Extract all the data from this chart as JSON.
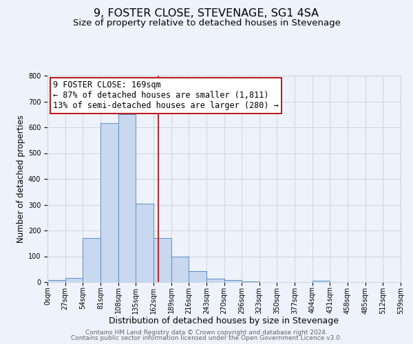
{
  "title": "9, FOSTER CLOSE, STEVENAGE, SG1 4SA",
  "subtitle": "Size of property relative to detached houses in Stevenage",
  "xlabel": "Distribution of detached houses by size in Stevenage",
  "ylabel": "Number of detached properties",
  "bin_edges": [
    0,
    27,
    54,
    81,
    108,
    135,
    162,
    189,
    216,
    243,
    270,
    297,
    324,
    351,
    378,
    405,
    432,
    459,
    486,
    513,
    540
  ],
  "bin_labels": [
    "0sqm",
    "27sqm",
    "54sqm",
    "81sqm",
    "108sqm",
    "135sqm",
    "162sqm",
    "189sqm",
    "216sqm",
    "243sqm",
    "270sqm",
    "296sqm",
    "323sqm",
    "350sqm",
    "377sqm",
    "404sqm",
    "431sqm",
    "458sqm",
    "485sqm",
    "512sqm",
    "539sqm"
  ],
  "counts": [
    8,
    15,
    170,
    615,
    650,
    305,
    170,
    98,
    43,
    13,
    8,
    3,
    0,
    0,
    0,
    5,
    0,
    0,
    0,
    0
  ],
  "bar_facecolor": "#c8d8ef",
  "bar_edgecolor": "#5a8ec8",
  "grid_color": "#ccd4e4",
  "background_color": "#eef2fa",
  "property_line_x": 169,
  "property_line_color": "#bb0000",
  "annotation_box_text": "9 FOSTER CLOSE: 169sqm\n← 87% of detached houses are smaller (1,811)\n13% of semi-detached houses are larger (280) →",
  "annotation_box_facecolor": "#ffffff",
  "annotation_box_edgecolor": "#bb0000",
  "ylim": [
    0,
    800
  ],
  "yticks": [
    0,
    100,
    200,
    300,
    400,
    500,
    600,
    700,
    800
  ],
  "footer_line1": "Contains HM Land Registry data © Crown copyright and database right 2024.",
  "footer_line2": "Contains public sector information licensed under the Open Government Licence v3.0.",
  "title_fontsize": 11.5,
  "subtitle_fontsize": 9.5,
  "xlabel_fontsize": 9,
  "ylabel_fontsize": 8.5,
  "tick_fontsize": 7,
  "annotation_fontsize": 8.5,
  "footer_fontsize": 6.5
}
